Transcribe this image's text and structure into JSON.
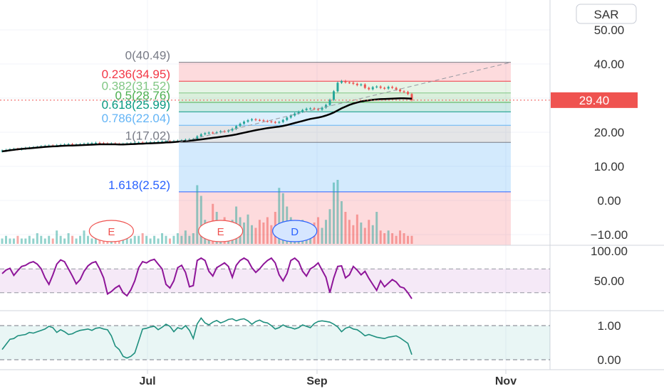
{
  "currency_label": "SAR",
  "colors": {
    "up": "#26a69a",
    "down": "#ef5350",
    "ma": "#000000",
    "rsi": "#8e1599",
    "osc": "#1e8f7e",
    "price_badge": "#ef5350"
  },
  "chart_data": {
    "type": "candlestick",
    "title": "",
    "x_labels": [
      "Jul",
      "Sep",
      "Nov"
    ],
    "price_axis": {
      "ticks": [
        "50.00",
        "40.00",
        "30.00",
        "20.00",
        "10.00",
        "0.00",
        "−10.00"
      ],
      "range": [
        -13,
        56
      ]
    },
    "last_price": "29.40",
    "fibonacci": [
      {
        "label": "0(40.49)",
        "level": 40.49,
        "color": "#787b86"
      },
      {
        "label": "0.236(34.95)",
        "level": 34.95,
        "color": "#f23645"
      },
      {
        "label": "0.382(31.52)",
        "level": 31.52,
        "color": "#81c784"
      },
      {
        "label": "0.5(28.76)",
        "level": 28.76,
        "color": "#4caf50"
      },
      {
        "label": "0.618(25.99)",
        "level": 25.99,
        "color": "#089981"
      },
      {
        "label": "0.786(22.04)",
        "level": 22.04,
        "color": "#64b5f6"
      },
      {
        "label": "1(17.02)",
        "level": 17.02,
        "color": "#787b86"
      },
      {
        "label": "1.618(2.52)",
        "level": 2.52,
        "color": "#2962ff"
      }
    ],
    "events": [
      {
        "label": "E",
        "kind": "earnings"
      },
      {
        "label": "E",
        "kind": "earnings"
      },
      {
        "label": "D",
        "kind": "dividend"
      }
    ],
    "close_prices": [
      14.6,
      14.8,
      15.0,
      15.1,
      15.0,
      15.2,
      15.4,
      15.5,
      15.6,
      15.7,
      15.9,
      16.0,
      16.1,
      16.0,
      16.2,
      16.3,
      16.4,
      16.5,
      16.3,
      16.4,
      16.5,
      16.6,
      16.7,
      16.8,
      16.9,
      16.8,
      16.7,
      16.6,
      16.7,
      16.6,
      16.5,
      16.6,
      16.7,
      16.8,
      16.9,
      17.0,
      16.9,
      17.0,
      17.1,
      17.1,
      17.2,
      17.3,
      17.4,
      17.3,
      17.4,
      17.5,
      17.6,
      17.8,
      17.9,
      18.0,
      18.8,
      19.4,
      19.7,
      19.9,
      19.8,
      20.0,
      20.3,
      20.2,
      20.5,
      21.0,
      21.8,
      22.5,
      23.1,
      23.5,
      23.8,
      23.6,
      23.5,
      23.3,
      23.2,
      23.0,
      22.8,
      23.0,
      23.6,
      24.3,
      24.9,
      25.5,
      26.0,
      26.5,
      26.9,
      27.0,
      26.8,
      26.6,
      27.2,
      28.0,
      29.5,
      32.0,
      34.5,
      35.0,
      34.6,
      34.5,
      34.2,
      33.8,
      34.0,
      33.0,
      32.6,
      33.2,
      33.4,
      33.0,
      32.8,
      33.3,
      33.0,
      32.5,
      32.0,
      31.8,
      31.2,
      29.4
    ],
    "ma_prices": [
      14.4,
      14.55,
      14.7,
      14.85,
      15.0,
      15.1,
      15.2,
      15.3,
      15.4,
      15.5,
      15.6,
      15.7,
      15.8,
      15.85,
      15.9,
      16.0,
      16.05,
      16.1,
      16.1,
      16.15,
      16.2,
      16.25,
      16.3,
      16.35,
      16.4,
      16.45,
      16.45,
      16.45,
      16.45,
      16.45,
      16.4,
      16.4,
      16.45,
      16.5,
      16.55,
      16.6,
      16.65,
      16.7,
      16.75,
      16.8,
      16.85,
      16.9,
      17.0,
      17.05,
      17.1,
      17.2,
      17.3,
      17.4,
      17.5,
      17.6,
      17.75,
      17.9,
      18.05,
      18.2,
      18.35,
      18.5,
      18.65,
      18.8,
      18.95,
      19.15,
      19.35,
      19.6,
      19.85,
      20.1,
      20.35,
      20.6,
      20.8,
      21.0,
      21.2,
      21.35,
      21.5,
      21.65,
      21.85,
      22.1,
      22.4,
      22.7,
      23.0,
      23.3,
      23.6,
      23.9,
      24.1,
      24.3,
      24.55,
      24.9,
      25.3,
      25.8,
      26.4,
      27.0,
      27.5,
      28.0,
      28.4,
      28.7,
      29.0,
      29.2,
      29.35,
      29.5,
      29.6,
      29.7,
      29.75,
      29.8,
      29.85,
      29.9,
      29.95,
      29.95,
      29.9,
      29.85
    ],
    "volume": [
      2,
      3,
      2,
      2,
      3,
      2,
      2,
      3,
      2,
      4,
      3,
      2,
      3,
      2,
      5,
      3,
      2,
      4,
      3,
      2,
      3,
      5,
      3,
      2,
      3,
      4,
      2,
      3,
      2,
      3,
      2,
      3,
      4,
      2,
      3,
      3,
      4,
      3,
      2,
      3,
      2,
      4,
      3,
      2,
      3,
      4,
      3,
      5,
      3,
      4,
      22,
      18,
      9,
      7,
      15,
      12,
      8,
      10,
      6,
      9,
      14,
      10,
      8,
      11,
      7,
      6,
      9,
      8,
      10,
      7,
      12,
      21,
      19,
      14,
      10,
      8,
      6,
      9,
      7,
      6,
      8,
      10,
      6,
      9,
      13,
      23,
      24,
      16,
      12,
      9,
      7,
      11,
      8,
      6,
      9,
      7,
      12,
      5,
      4,
      5,
      4,
      3,
      5,
      4,
      3,
      3
    ],
    "rsi": {
      "ticks": [
        "100.00",
        "50.00"
      ],
      "range": [
        0,
        100
      ],
      "band": [
        30,
        70
      ],
      "values": [
        62,
        68,
        71,
        59,
        67,
        74,
        76,
        80,
        82,
        78,
        70,
        55,
        44,
        60,
        78,
        85,
        82,
        70,
        58,
        45,
        52,
        66,
        75,
        80,
        82,
        70,
        55,
        28,
        32,
        38,
        42,
        30,
        25,
        35,
        50,
        72,
        82,
        80,
        84,
        86,
        78,
        70,
        44,
        38,
        50,
        72,
        76,
        64,
        40,
        42,
        84,
        88,
        84,
        66,
        58,
        72,
        76,
        80,
        74,
        56,
        76,
        84,
        88,
        84,
        72,
        64,
        70,
        78,
        84,
        88,
        80,
        60,
        50,
        62,
        84,
        88,
        82,
        66,
        58,
        70,
        74,
        80,
        68,
        56,
        30,
        55,
        74,
        75,
        55,
        60,
        74,
        68,
        60,
        66,
        54,
        44,
        34,
        50,
        40,
        46,
        52,
        48,
        40,
        38,
        30,
        20
      ]
    },
    "oscillator": {
      "ticks": [
        "1.00",
        "0.00"
      ],
      "range": [
        -0.05,
        1.35
      ],
      "band": [
        0,
        1
      ],
      "values": [
        0.3,
        0.45,
        0.6,
        0.62,
        0.7,
        0.72,
        0.74,
        0.8,
        0.78,
        0.82,
        0.86,
        0.9,
        0.98,
        0.94,
        0.8,
        0.88,
        0.82,
        0.74,
        0.76,
        0.82,
        0.86,
        0.88,
        0.9,
        0.86,
        0.92,
        0.94,
        0.9,
        0.88,
        0.7,
        0.4,
        0.3,
        0.1,
        0.05,
        0.1,
        0.2,
        0.55,
        0.9,
        0.92,
        0.96,
        0.98,
        0.88,
        0.95,
        1.04,
        0.98,
        0.82,
        0.94,
        0.9,
        1.0,
        0.86,
        0.62,
        1.05,
        1.22,
        1.08,
        1.02,
        1.1,
        1.15,
        1.08,
        1.12,
        1.18,
        1.2,
        1.14,
        1.18,
        1.2,
        1.14,
        1.04,
        1.12,
        1.16,
        1.1,
        1.08,
        1.0,
        0.9,
        0.94,
        1.02,
        0.96,
        0.94,
        0.9,
        0.94,
        1.02,
        0.98,
        0.94,
        1.06,
        1.12,
        1.14,
        1.12,
        1.1,
        1.04,
        0.96,
        0.82,
        0.92,
        0.96,
        0.9,
        0.88,
        0.8,
        0.7,
        0.74,
        0.7,
        0.66,
        0.64,
        0.62,
        0.66,
        0.68,
        0.7,
        0.64,
        0.56,
        0.48,
        0.15
      ]
    }
  }
}
